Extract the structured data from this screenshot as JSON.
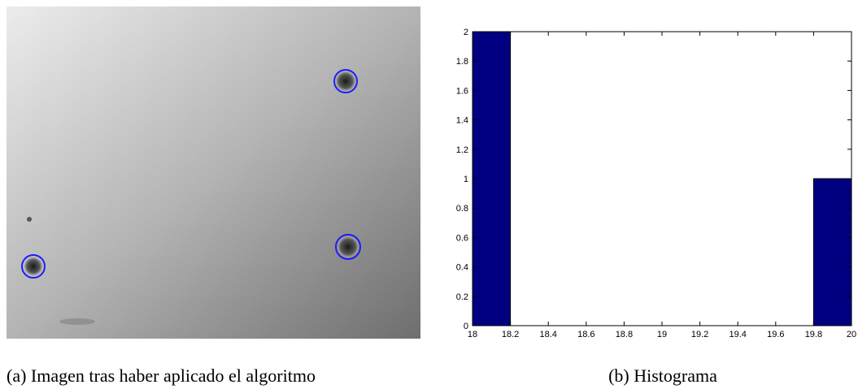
{
  "chart_data": {
    "type": "histogram",
    "bins": [
      18,
      18.2,
      18.4,
      18.6,
      18.8,
      19,
      19.2,
      19.4,
      19.6,
      19.8,
      20
    ],
    "values": [
      2,
      0,
      0,
      0,
      0,
      0,
      0,
      0,
      0,
      1
    ],
    "color": "#000080",
    "xlim": [
      18,
      20
    ],
    "xticks": [
      18,
      18.2,
      18.4,
      18.6,
      18.8,
      19,
      19.2,
      19.4,
      19.6,
      19.8,
      20
    ],
    "ylim": [
      0,
      2
    ],
    "yticks": [
      0,
      0.2,
      0.4,
      0.6,
      0.8,
      1,
      1.2,
      1.4,
      1.6,
      1.8,
      2
    ]
  },
  "captions": [
    "(a) Imagen tras haber aplicado el algoritmo",
    "(b) Histograma"
  ]
}
